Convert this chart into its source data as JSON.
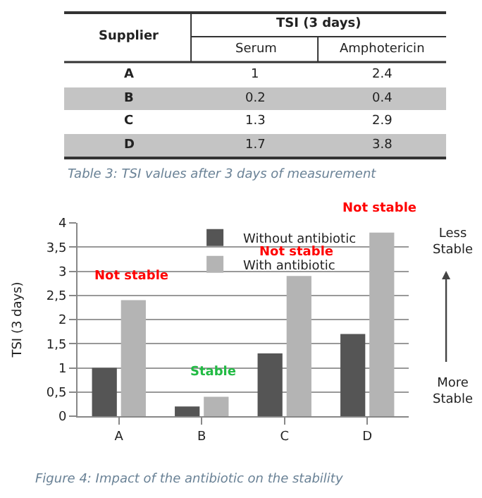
{
  "chart_data": [
    {
      "type": "other",
      "title": "TSI (3 days)",
      "xlabel": "Supplier",
      "categories": [
        "A",
        "B",
        "C",
        "D"
      ],
      "series": [
        {
          "name": "Serum",
          "values": [
            1,
            0.2,
            1.3,
            1.7
          ]
        },
        {
          "name": "Amphotericin",
          "values": [
            2.4,
            0.4,
            2.9,
            3.8
          ]
        }
      ],
      "data_labels": true,
      "annotations": [
        "Table 3: TSI values after 3 days of measurement"
      ]
    },
    {
      "type": "bar",
      "categories": [
        "A",
        "B",
        "C",
        "D"
      ],
      "series": [
        {
          "name": "Without antibiotic",
          "color": "#555555",
          "values": [
            1,
            0.2,
            1.3,
            1.7
          ]
        },
        {
          "name": "With antibiotic",
          "color": "#b4b4b4",
          "values": [
            2.4,
            0.4,
            2.9,
            3.8
          ]
        }
      ],
      "ylabel": "TSI (3 days)",
      "ylim": [
        0,
        4
      ],
      "yticks": [
        0,
        {
          "value": 0.5,
          "label": "0,5"
        },
        1,
        {
          "value": 1.5,
          "label": "1,5"
        },
        2,
        {
          "value": 2.5,
          "label": "2,5"
        },
        3,
        {
          "value": 3.5,
          "label": "3,5"
        },
        4
      ],
      "grid": "y",
      "legend": "top",
      "annotations": [
        "Not stable",
        "Stable",
        "Not stable",
        "Not stable",
        "Less Stable",
        "More Stable",
        "Figure 4: Impact of the antibiotic on the stability"
      ]
    }
  ]
}
